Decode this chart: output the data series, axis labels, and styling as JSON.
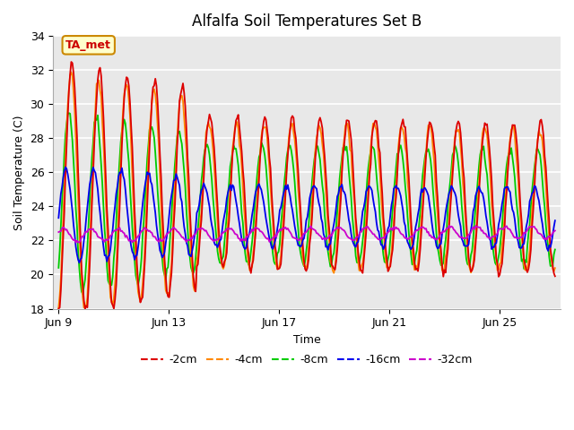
{
  "title": "Alfalfa Soil Temperatures Set B",
  "xlabel": "Time",
  "ylabel": "Soil Temperature (C)",
  "ylim": [
    18,
    34
  ],
  "xlim_days": [
    0,
    18
  ],
  "x_tick_positions": [
    0,
    4,
    8,
    12,
    16
  ],
  "x_tick_labels": [
    "Jun 9",
    "Jun 13",
    "Jun 17",
    "Jun 21",
    "Jun 25"
  ],
  "yticks": [
    18,
    20,
    22,
    24,
    26,
    28,
    30,
    32,
    34
  ],
  "legend_labels": [
    "-2cm",
    "-4cm",
    "-8cm",
    "-16cm",
    "-32cm"
  ],
  "legend_colors": [
    "#dd0000",
    "#ff8800",
    "#00cc00",
    "#0000ee",
    "#cc00cc"
  ],
  "annotation_text": "TA_met",
  "annotation_color": "#cc0000",
  "annotation_bg": "#ffffcc",
  "annotation_border": "#cc8800",
  "fig_bg_color": "#ffffff",
  "plot_bg_color": "#e8e8e8",
  "grid_color": "#ffffff",
  "title_fontsize": 12,
  "label_fontsize": 9,
  "tick_fontsize": 9,
  "legend_fontsize": 9
}
